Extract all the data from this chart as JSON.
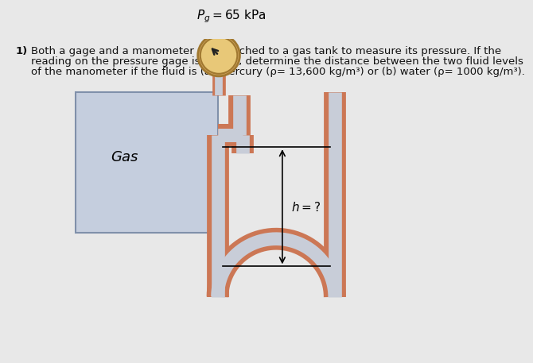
{
  "title_number": "1)",
  "problem_text_line1": "Both a gage and a manometer are attached to a gas tank to measure its pressure. If the",
  "problem_text_line2": "reading on the pressure gage is 65 kPa, determine the distance between the two fluid levels",
  "problem_text_line3": "of the manometer if the fluid is (a) mercury (ρ= 13,600 kg/m³) or (b) water (ρ= 1000 kg/m³).",
  "pressure_label": "$P_g = 65$ kPa",
  "gas_label": "Gas",
  "h_label": "$h = ?$",
  "bg_color": "#e8e8e8",
  "tank_color": "#c5cede",
  "tank_border": "#8090aa",
  "pipe_outer_color": "#cc7755",
  "pipe_inner_color": "#c8cdd8",
  "gage_rim_color": "#d4a860",
  "gage_face_color": "#e8c878",
  "gage_border_color": "#a07830",
  "gage_needle_color": "#222222",
  "text_color": "#111111"
}
